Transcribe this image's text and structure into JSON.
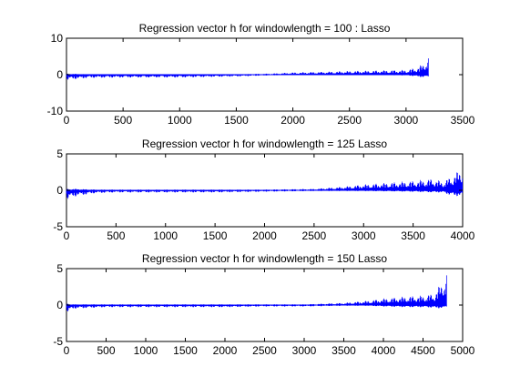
{
  "chart_data": [
    {
      "type": "line",
      "title": "Regression vector h for windowlength = 100 : Lasso",
      "xlim": [
        0,
        3500
      ],
      "ylim": [
        -10,
        10
      ],
      "xticks": [
        0,
        500,
        1000,
        1500,
        2000,
        2500,
        3000,
        3500
      ],
      "yticks": [
        -10,
        0,
        10
      ],
      "series_color": "#0000ff",
      "data_extent_x": 3200,
      "envelope": [
        [
          0,
          -1.5,
          0.3
        ],
        [
          100,
          -1.2,
          0.2
        ],
        [
          200,
          -0.9,
          0.1
        ],
        [
          500,
          -0.8,
          0.1
        ],
        [
          1000,
          -0.8,
          0.1
        ],
        [
          1500,
          -0.5,
          0.1
        ],
        [
          1800,
          -0.2,
          0.3
        ],
        [
          2000,
          -0.1,
          0.6
        ],
        [
          2500,
          -0.1,
          1.0
        ],
        [
          2800,
          -0.1,
          1.2
        ],
        [
          3000,
          -0.2,
          1.3
        ],
        [
          3100,
          -0.5,
          2.0
        ],
        [
          3150,
          -0.8,
          3.0
        ],
        [
          3200,
          -0.5,
          5.0
        ]
      ]
    },
    {
      "type": "line",
      "title": "Regression vector h for windowlength = 125 Lasso",
      "xlim": [
        0,
        4000
      ],
      "ylim": [
        -5,
        5
      ],
      "xticks": [
        0,
        500,
        1000,
        1500,
        2000,
        2500,
        3000,
        3500,
        4000
      ],
      "yticks": [
        -5,
        0,
        5
      ],
      "series_color": "#0000ff",
      "data_extent_x": 4000,
      "envelope": [
        [
          0,
          -1.3,
          0.2
        ],
        [
          100,
          -0.8,
          0.2
        ],
        [
          300,
          -0.4,
          0.1
        ],
        [
          500,
          -0.3,
          0.1
        ],
        [
          1000,
          -0.3,
          0.1
        ],
        [
          1500,
          -0.3,
          0.1
        ],
        [
          2000,
          -0.2,
          0.1
        ],
        [
          2500,
          -0.1,
          0.2
        ],
        [
          2800,
          -0.1,
          0.5
        ],
        [
          3000,
          -0.1,
          0.8
        ],
        [
          3500,
          -0.2,
          1.3
        ],
        [
          3700,
          -0.3,
          1.6
        ],
        [
          3800,
          -0.3,
          1.2
        ],
        [
          3900,
          -0.8,
          2.0
        ],
        [
          4000,
          -0.8,
          3.2
        ]
      ]
    },
    {
      "type": "line",
      "title": "Regression vector h for windowlength = 150 Lasso",
      "xlim": [
        0,
        5000
      ],
      "ylim": [
        -5,
        5
      ],
      "xticks": [
        0,
        500,
        1000,
        1500,
        2000,
        2500,
        3000,
        3500,
        4000,
        4500,
        5000
      ],
      "yticks": [
        -5,
        0,
        5
      ],
      "series_color": "#0000ff",
      "data_extent_x": 4800,
      "envelope": [
        [
          0,
          -1.0,
          0.2
        ],
        [
          100,
          -0.5,
          0.1
        ],
        [
          500,
          -0.3,
          0.1
        ],
        [
          1000,
          -0.3,
          0.1
        ],
        [
          1500,
          -0.3,
          0.1
        ],
        [
          2000,
          -0.3,
          0.1
        ],
        [
          2500,
          -0.2,
          0.1
        ],
        [
          3000,
          -0.2,
          0.1
        ],
        [
          3500,
          -0.1,
          0.3
        ],
        [
          3800,
          -0.1,
          0.6
        ],
        [
          4000,
          -0.2,
          0.9
        ],
        [
          4300,
          -0.3,
          1.2
        ],
        [
          4500,
          -0.3,
          1.3
        ],
        [
          4650,
          -0.4,
          1.6
        ],
        [
          4750,
          -0.5,
          3.5
        ],
        [
          4800,
          -0.2,
          4.5
        ]
      ]
    }
  ]
}
